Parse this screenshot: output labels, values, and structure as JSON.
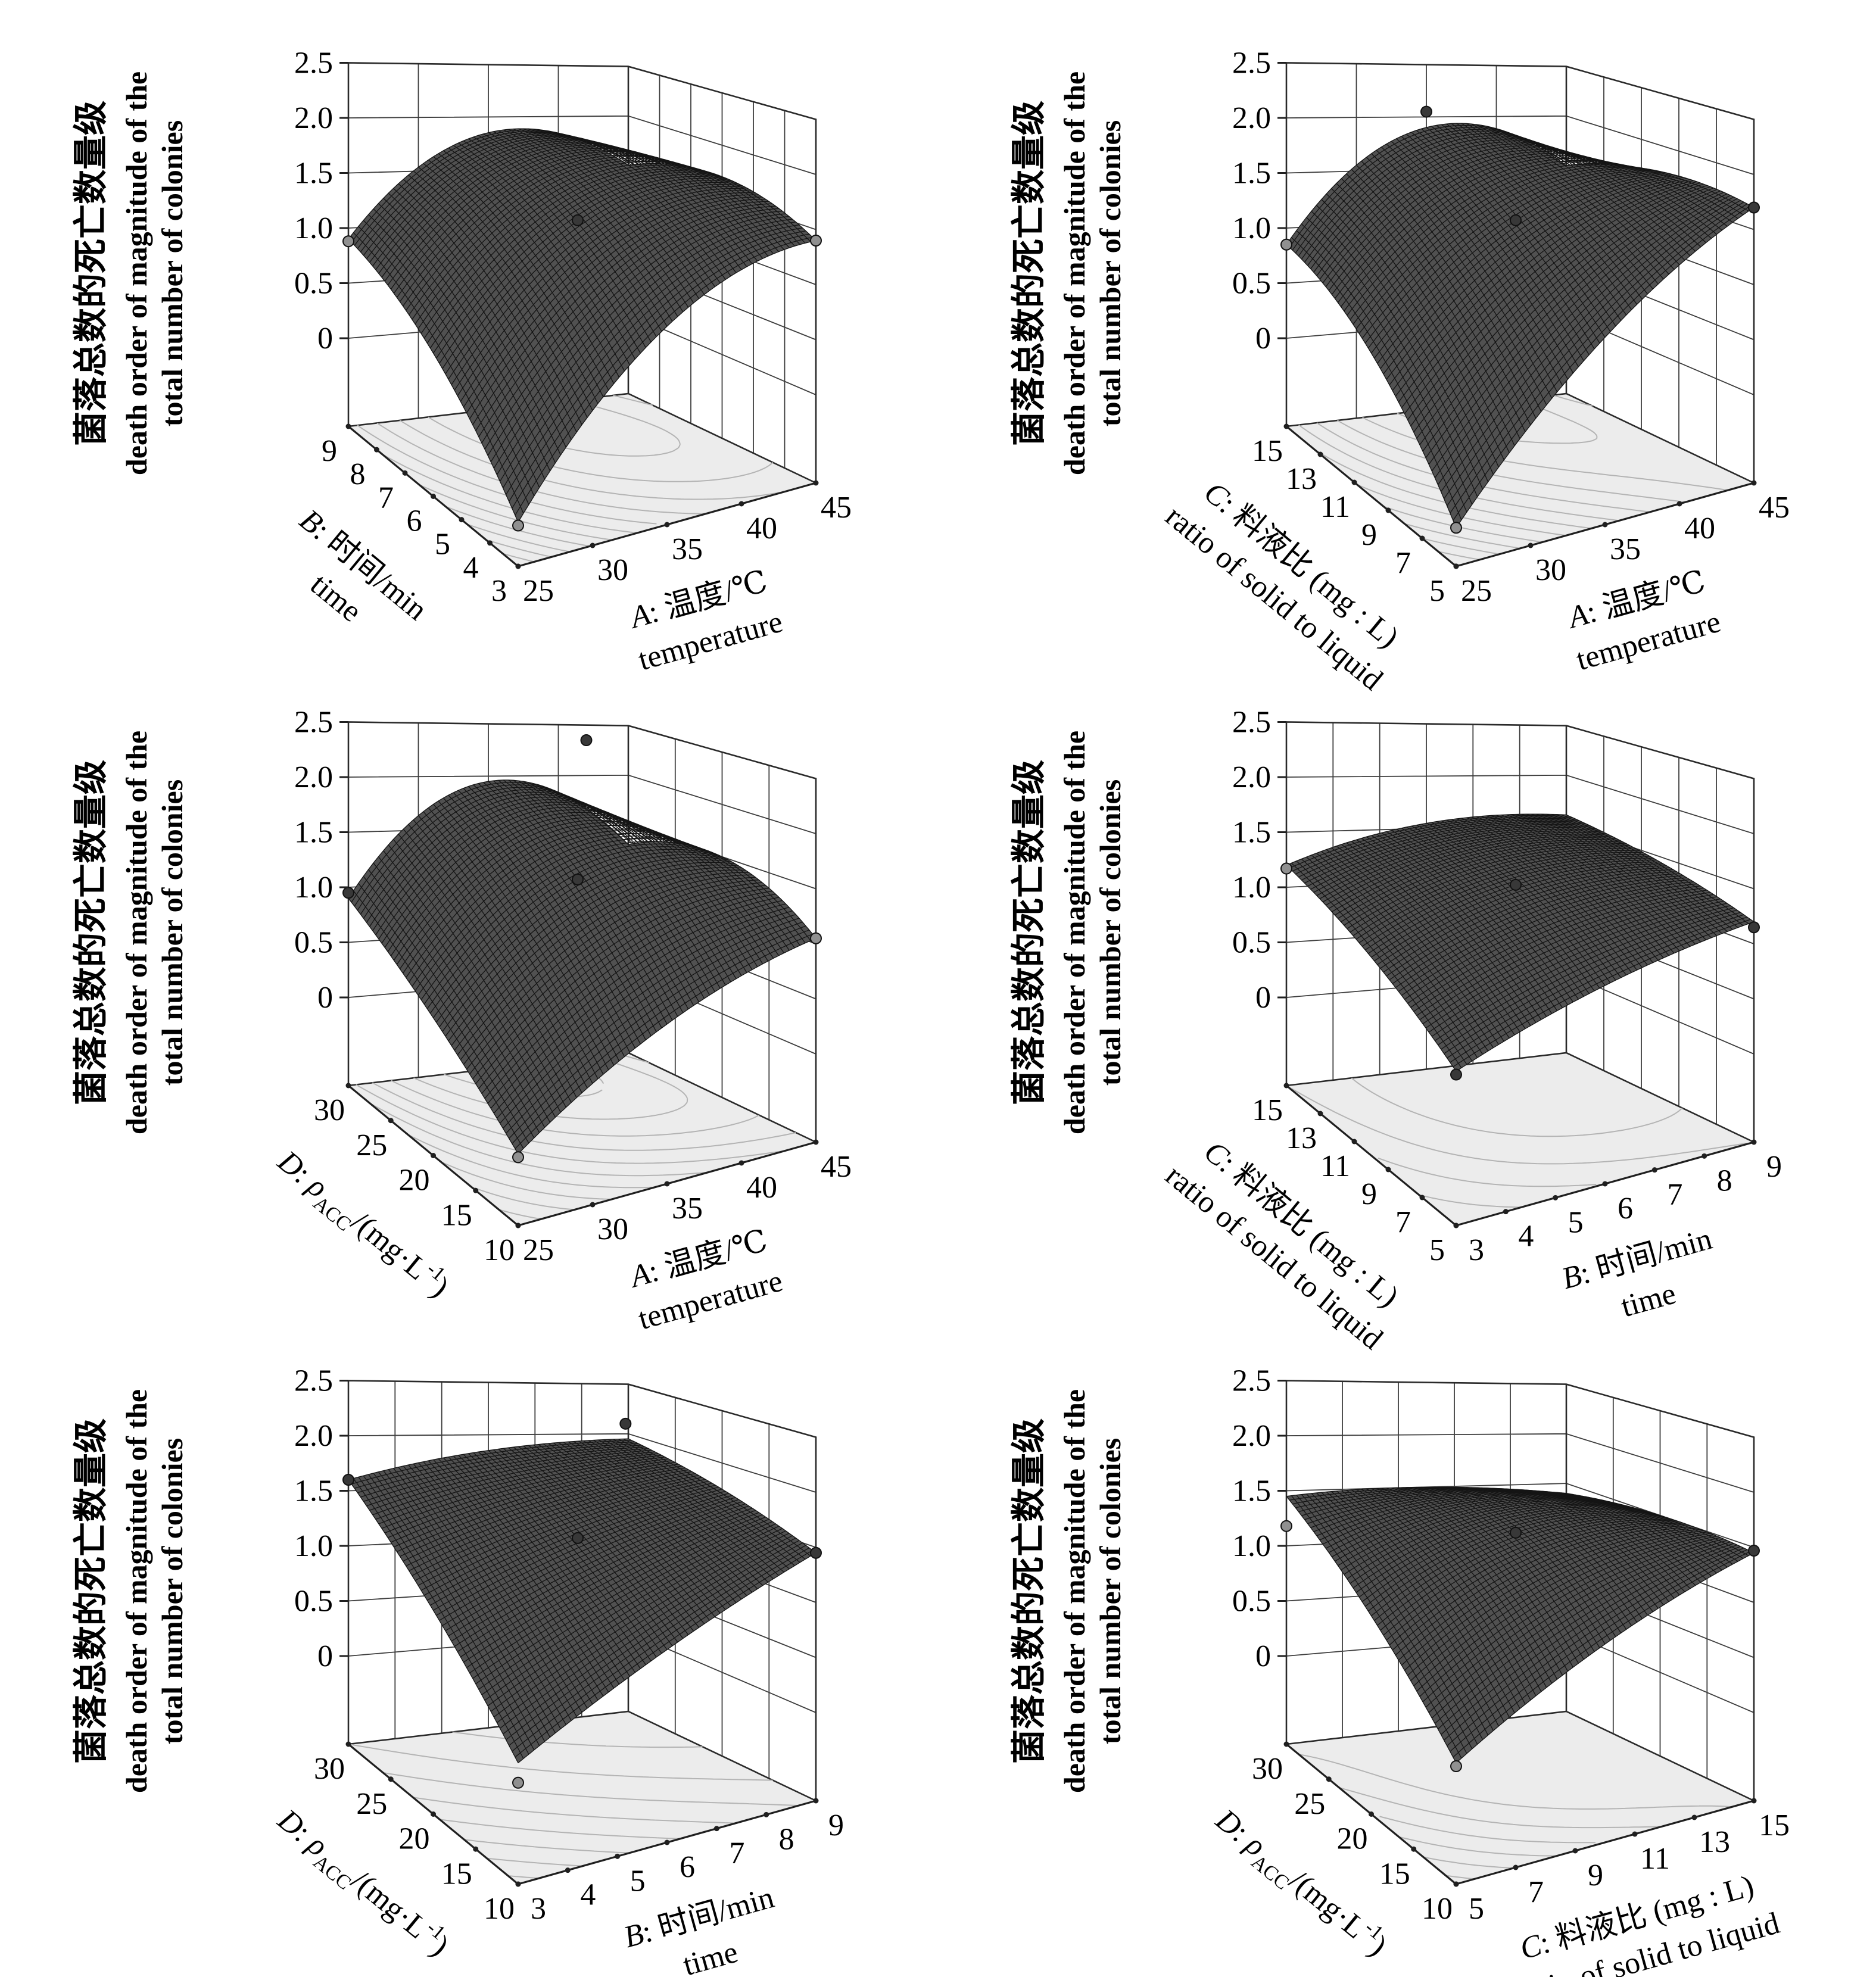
{
  "figure": {
    "background": "#ffffff",
    "grid": {
      "rows": 3,
      "cols": 2
    },
    "colors": {
      "surface_fill": "#515151",
      "mesh_line": "#141414",
      "floor_fill": "#ececec",
      "floor_contour": "#b4b4b4",
      "wall_grid": "#3c3c3c",
      "box_edge": "#2a2a2a",
      "axis_line": "#1f1f1f",
      "point_dark": "#383838",
      "point_gray": "#909090",
      "text": "#000000"
    }
  },
  "chart_data": {
    "type": "surface3d-grid",
    "z_floor": -0.8,
    "z_axis": {
      "label_zh": "菌落总数的死亡数量级",
      "label_en_lines": [
        "death order of magnitude of the",
        "total number of colonies"
      ],
      "tick_labels": [
        "2.5",
        "2.0",
        "1.5",
        "1.0",
        "0.5",
        "0"
      ],
      "tick_values": [
        2.5,
        2.0,
        1.5,
        1.0,
        0.5,
        0
      ],
      "range": [
        0,
        2.5
      ]
    },
    "axes_defs": {
      "A": {
        "parts": [
          {
            "t": "A",
            "style": "italic"
          },
          {
            "t": ": 温度/℃"
          }
        ],
        "en": "temperature",
        "ticks": [
          "25",
          "30",
          "35",
          "40",
          "45"
        ],
        "range": [
          25,
          45
        ]
      },
      "B": {
        "parts": [
          {
            "t": "B",
            "style": "italic"
          },
          {
            "t": ": 时间/min"
          }
        ],
        "en": "time",
        "ticks": [
          "3",
          "4",
          "5",
          "6",
          "7",
          "8",
          "9"
        ],
        "range": [
          3,
          9
        ]
      },
      "C": {
        "parts": [
          {
            "t": "C",
            "style": "italic"
          },
          {
            "t": ": 料液比 (mg : L)"
          }
        ],
        "en": "ratio of solid to liquid",
        "ticks": [
          "5",
          "7",
          "9",
          "11",
          "13",
          "15"
        ],
        "range": [
          5,
          15
        ]
      },
      "D": {
        "parts": [
          {
            "t": "D",
            "style": "italic"
          },
          {
            "t": ": "
          },
          {
            "t": "ρ",
            "style": "italic"
          },
          {
            "t": "ACC",
            "style": "sub"
          },
          {
            "t": "/(mg·L"
          },
          {
            "t": "-1",
            "style": "sup"
          },
          {
            "t": ")"
          }
        ],
        "en": null,
        "ticks": [
          "10",
          "15",
          "20",
          "25",
          "30"
        ],
        "range": [
          10,
          30
        ]
      }
    },
    "plots": [
      {
        "id": "time-vs-temperature",
        "x_axis": "A",
        "y_axis": "B",
        "surface_grid": [
          [
            -0.4,
            1.0,
            1.4
          ],
          [
            0.5,
            1.65,
            1.7
          ],
          [
            0.9,
            1.85,
            1.5
          ]
        ],
        "design_points": [
          {
            "x": 0,
            "y": 0,
            "z": -0.43,
            "shade": "gray"
          },
          {
            "x": 0,
            "y": 1,
            "z": 0.88,
            "shade": "gray"
          },
          {
            "x": 0.5,
            "y": 0.5,
            "z": 1.5,
            "shade": "dark"
          },
          {
            "x": 1,
            "y": 0,
            "z": 1.4,
            "shade": "gray"
          }
        ]
      },
      {
        "id": "ratio-vs-temperature",
        "x_axis": "A",
        "y_axis": "C",
        "surface_grid": [
          [
            -0.45,
            0.9,
            1.7
          ],
          [
            0.5,
            1.55,
            1.75
          ],
          [
            0.85,
            1.9,
            1.5
          ]
        ],
        "design_points": [
          {
            "x": 0,
            "y": 0,
            "z": -0.45,
            "shade": "gray"
          },
          {
            "x": 0,
            "y": 1,
            "z": 0.85,
            "shade": "gray"
          },
          {
            "x": 0.5,
            "y": 0.5,
            "z": 1.5,
            "shade": "dark"
          },
          {
            "x": 1,
            "y": 0,
            "z": 1.7,
            "shade": "dark"
          },
          {
            "x": 0.5,
            "y": 1,
            "z": 2.05,
            "shade": "dark"
          }
        ]
      },
      {
        "id": "acc-vs-temperature",
        "x_axis": "A",
        "y_axis": "D",
        "surface_grid": [
          [
            -0.15,
            0.65,
            1.05
          ],
          [
            0.45,
            1.5,
            1.5
          ],
          [
            0.9,
            1.95,
            1.3
          ]
        ],
        "design_points": [
          {
            "x": 0,
            "y": 0,
            "z": -0.18,
            "shade": "gray"
          },
          {
            "x": 0,
            "y": 1,
            "z": 0.95,
            "shade": "dark"
          },
          {
            "x": 0.5,
            "y": 0.5,
            "z": 1.5,
            "shade": "dark"
          },
          {
            "x": 1,
            "y": 0,
            "z": 1.05,
            "shade": "gray"
          },
          {
            "x": 0.85,
            "y": 1,
            "z": 2.35,
            "shade": "dark"
          }
        ]
      },
      {
        "id": "ratio-vs-time",
        "x_axis": "B",
        "y_axis": "C",
        "surface_grid": [
          [
            0.6,
            1.0,
            1.2
          ],
          [
            1.0,
            1.45,
            1.45
          ],
          [
            1.2,
            1.55,
            1.6
          ]
        ],
        "design_points": [
          {
            "x": 0,
            "y": 0,
            "z": 0.57,
            "shade": "dark"
          },
          {
            "x": 0,
            "y": 1,
            "z": 1.17,
            "shade": "gray"
          },
          {
            "x": 0.5,
            "y": 0.5,
            "z": 1.45,
            "shade": "dark"
          },
          {
            "x": 1,
            "y": 0,
            "z": 1.15,
            "shade": "dark"
          }
        ]
      },
      {
        "id": "acc-vs-time",
        "x_axis": "B",
        "y_axis": "D",
        "surface_grid": [
          [
            0.3,
            0.95,
            1.45
          ],
          [
            1.05,
            1.5,
            1.75
          ],
          [
            1.6,
            1.85,
            1.95
          ]
        ],
        "design_points": [
          {
            "x": 0,
            "y": 0,
            "z": 0.12,
            "shade": "gray"
          },
          {
            "x": 0,
            "y": 1,
            "z": 1.6,
            "shade": "dark"
          },
          {
            "x": 0.5,
            "y": 0.5,
            "z": 1.5,
            "shade": "dark"
          },
          {
            "x": 1,
            "y": 0,
            "z": 1.45,
            "shade": "dark"
          },
          {
            "x": 0.97,
            "y": 0.97,
            "z": 2.12,
            "shade": "dark"
          }
        ]
      },
      {
        "id": "acc-vs-ratio",
        "x_axis": "C",
        "y_axis": "D",
        "surface_grid": [
          [
            0.3,
            1.0,
            1.45
          ],
          [
            1.0,
            1.55,
            1.5
          ],
          [
            1.45,
            1.5,
            1.4
          ]
        ],
        "design_points": [
          {
            "x": 0,
            "y": 0,
            "z": 0.27,
            "shade": "gray"
          },
          {
            "x": 0,
            "y": 1,
            "z": 1.18,
            "shade": "gray"
          },
          {
            "x": 0.5,
            "y": 0.5,
            "z": 1.55,
            "shade": "dark"
          },
          {
            "x": 1,
            "y": 0,
            "z": 1.47,
            "shade": "dark"
          }
        ]
      }
    ]
  }
}
